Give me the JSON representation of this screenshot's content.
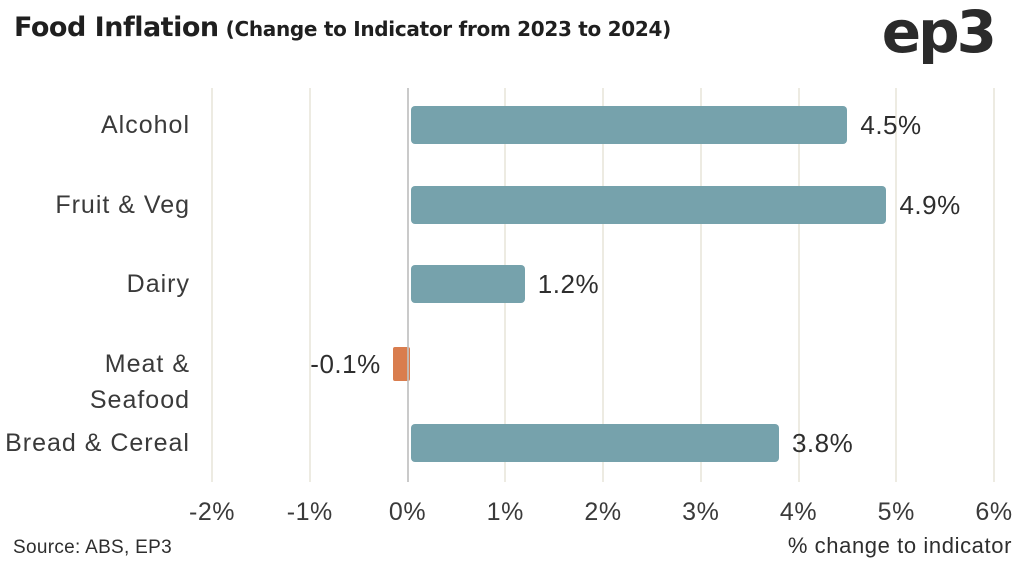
{
  "header": {
    "title_main": "Food Inflation",
    "title_sub": "(Change to Indicator from 2023 to 2024)",
    "logo_text": "ep3"
  },
  "chart_data": {
    "type": "bar",
    "orientation": "horizontal",
    "title": "Food Inflation (Change to Indicator from 2023 to 2024)",
    "categories": [
      "Alcohol",
      "Fruit & Veg",
      "Dairy",
      "Meat & Seafood",
      "Bread & Cereal"
    ],
    "values": [
      4.5,
      4.9,
      1.2,
      -0.1,
      3.8
    ],
    "value_labels": [
      "4.5%",
      "4.9%",
      "1.2%",
      "-0.1%",
      "3.8%"
    ],
    "xlabel": "% change to indicator",
    "xlim": [
      -2,
      6
    ],
    "x_ticks": [
      -2,
      -1,
      0,
      1,
      2,
      3,
      4,
      5,
      6
    ],
    "x_tick_labels": [
      "-2%",
      "-1%",
      "0%",
      "1%",
      "2%",
      "3%",
      "4%",
      "5%",
      "6%"
    ],
    "grid": true,
    "legend": "none",
    "colors": {
      "positive_bar": "#76a2ac",
      "negative_bar": "#d97d4e",
      "gridline": "#edebe2",
      "zero_line": "#c1c1c1",
      "text": "#2e2e2e"
    }
  },
  "footer": {
    "source": "Source: ABS, EP3"
  }
}
